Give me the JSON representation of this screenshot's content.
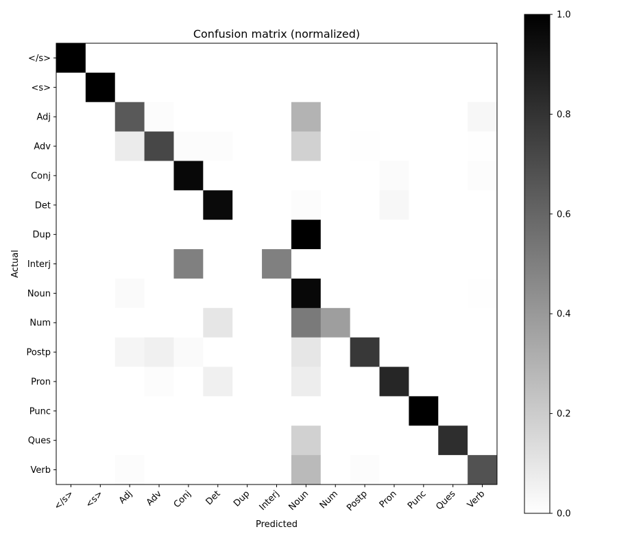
{
  "chart_data": {
    "type": "heatmap",
    "title": "Confusion matrix (normalized)",
    "xlabel": "Predicted",
    "ylabel": "Actual",
    "x_categories": [
      "</s>",
      "<s>",
      "Adj",
      "Adv",
      "Conj",
      "Det",
      "Dup",
      "Interj",
      "Noun",
      "Num",
      "Postp",
      "Pron",
      "Punc",
      "Ques",
      "Verb"
    ],
    "y_categories": [
      "</s>",
      "<s>",
      "Adj",
      "Adv",
      "Conj",
      "Det",
      "Dup",
      "Interj",
      "Noun",
      "Num",
      "Postp",
      "Pron",
      "Punc",
      "Ques",
      "Verb"
    ],
    "values": [
      [
        1.0,
        0,
        0,
        0,
        0,
        0,
        0,
        0,
        0,
        0,
        0,
        0,
        0,
        0,
        0
      ],
      [
        0,
        1.0,
        0,
        0,
        0,
        0,
        0,
        0,
        0,
        0,
        0,
        0,
        0,
        0,
        0
      ],
      [
        0,
        0,
        0.65,
        0.01,
        0,
        0,
        0,
        0,
        0.3,
        0,
        0,
        0,
        0,
        0,
        0.03
      ],
      [
        0,
        0,
        0.08,
        0.72,
        0.01,
        0.01,
        0,
        0,
        0.18,
        0,
        0.005,
        0,
        0,
        0,
        0.005
      ],
      [
        0,
        0,
        0,
        0,
        0.97,
        0,
        0,
        0,
        0,
        0,
        0,
        0.015,
        0,
        0,
        0.01
      ],
      [
        0,
        0,
        0,
        0,
        0,
        0.96,
        0,
        0,
        0.01,
        0,
        0,
        0.03,
        0,
        0,
        0
      ],
      [
        0,
        0,
        0,
        0,
        0,
        0,
        0,
        0,
        1.0,
        0,
        0,
        0,
        0,
        0,
        0
      ],
      [
        0,
        0,
        0,
        0,
        0.5,
        0,
        0,
        0.5,
        0,
        0,
        0,
        0,
        0,
        0,
        0
      ],
      [
        0,
        0,
        0.02,
        0,
        0,
        0,
        0,
        0,
        0.97,
        0,
        0,
        0,
        0,
        0,
        0.005
      ],
      [
        0,
        0,
        0,
        0,
        0,
        0.1,
        0,
        0,
        0.52,
        0.38,
        0,
        0,
        0,
        0,
        0
      ],
      [
        0,
        0,
        0.04,
        0.06,
        0.02,
        0,
        0,
        0,
        0.1,
        0,
        0.78,
        0,
        0,
        0,
        0
      ],
      [
        0,
        0,
        0,
        0.01,
        0,
        0.06,
        0,
        0,
        0.07,
        0,
        0,
        0.85,
        0,
        0,
        0
      ],
      [
        0,
        0,
        0,
        0,
        0,
        0,
        0,
        0,
        0,
        0,
        0,
        0,
        1.0,
        0,
        0
      ],
      [
        0,
        0,
        0,
        0,
        0,
        0,
        0,
        0,
        0.18,
        0,
        0,
        0,
        0,
        0.82,
        0
      ],
      [
        0,
        0,
        0.01,
        0,
        0,
        0,
        0,
        0,
        0.27,
        0,
        0.01,
        0,
        0,
        0,
        0.68
      ]
    ],
    "value_range": [
      0,
      1
    ],
    "colormap": "greys",
    "colorbar_ticks": [
      "0.0",
      "0.2",
      "0.4",
      "0.6",
      "0.8",
      "1.0"
    ],
    "grid": false
  }
}
